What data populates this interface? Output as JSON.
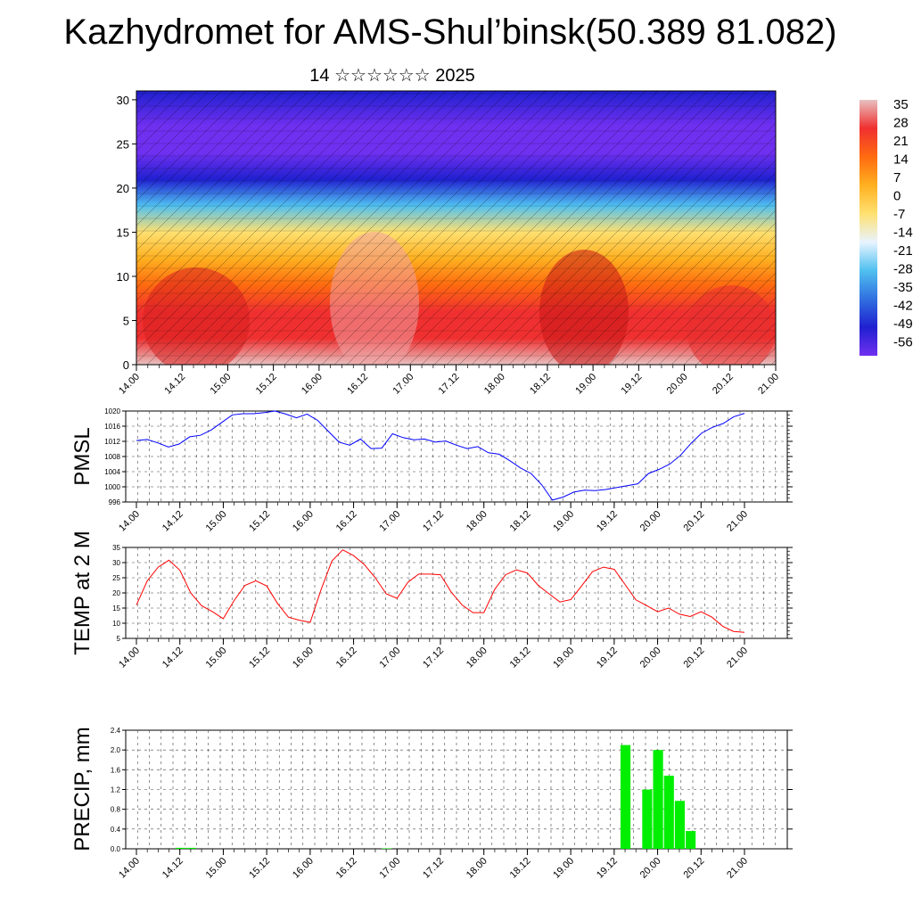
{
  "title": "Kazhydromet for AMS-Shul’binsk(50.389 81.082)",
  "date_label": "14 ☆☆☆☆☆☆ 2025",
  "x_ticks": [
    "14.00",
    "14.12",
    "15.00",
    "15.12",
    "16.00",
    "16.12",
    "17.00",
    "17.12",
    "18.00",
    "18.12",
    "19.00",
    "19.12",
    "20.00",
    "20.12",
    "21.00"
  ],
  "colorbar": {
    "labels": [
      "35",
      "28",
      "21",
      "14",
      "7",
      "0",
      "-7",
      "-14",
      "-21",
      "-28",
      "-35",
      "-42",
      "-49",
      "-56"
    ],
    "colors": [
      "#e8c0c0",
      "#f03030",
      "#ff6a10",
      "#ffb020",
      "#ffe070",
      "#e8f4ff",
      "#50c0f0",
      "#3070e0",
      "#2020d0",
      "#7030f0"
    ]
  },
  "chart_data": [
    {
      "type": "heatmap",
      "title": "",
      "xlabel": "",
      "ylabel": "",
      "x": [
        "14.00",
        "14.12",
        "15.00",
        "15.12",
        "16.00",
        "16.12",
        "17.00",
        "17.12",
        "18.00",
        "18.12",
        "19.00",
        "19.12",
        "20.00",
        "20.12",
        "21.00"
      ],
      "y_ticks": [
        0,
        5,
        10,
        15,
        20,
        25,
        30
      ],
      "ylim": [
        0,
        31
      ],
      "zlim": [
        -56,
        35
      ],
      "profile_levels": [
        0,
        3,
        6,
        9,
        12,
        15,
        18,
        21,
        24,
        27,
        31
      ],
      "profile_values": [
        30,
        27,
        24,
        18,
        8,
        -8,
        -25,
        -45,
        -56,
        -52,
        -48
      ]
    },
    {
      "type": "line",
      "ylabel": "PMSL",
      "y_ticks": [
        996,
        1000,
        1004,
        1008,
        1012,
        1016,
        1020
      ],
      "ylim": [
        996,
        1020
      ],
      "grid": true,
      "series": [
        {
          "color": "#0000ff",
          "values": [
            1012.2,
            1012.5,
            1011.6,
            1010.5,
            1011.3,
            1013.2,
            1013.6,
            1015.0,
            1017.0,
            1019.0,
            1019.3,
            1019.3,
            1019.6,
            1020.0,
            1019.2,
            1018.2,
            1019.2,
            1017.5,
            1014.6,
            1011.8,
            1011.0,
            1012.6,
            1010.1,
            1010.2,
            1014.0,
            1013.0,
            1012.4,
            1012.6,
            1011.8,
            1012.1,
            1011.0,
            1010.1,
            1010.6,
            1009.0,
            1008.6,
            1006.9,
            1005.0,
            1003.5,
            1000.5,
            996.5,
            997.3,
            998.6,
            999.1,
            999.0,
            999.3,
            999.8,
            1000.3,
            1000.8,
            1003.5,
            1004.6,
            1006.0,
            1008.3,
            1011.5,
            1014.2,
            1015.7,
            1016.7,
            1018.5,
            1019.4
          ]
        }
      ]
    },
    {
      "type": "line",
      "ylabel": "TEMP at 2 M",
      "y_ticks": [
        5,
        10,
        15,
        20,
        25,
        30,
        35
      ],
      "ylim": [
        5,
        35
      ],
      "grid": true,
      "series": [
        {
          "color": "#ff0000",
          "values": [
            16.0,
            24.0,
            28.5,
            30.8,
            27.5,
            20.0,
            15.8,
            13.8,
            11.5,
            17.5,
            22.5,
            24.0,
            22.3,
            16.5,
            12.0,
            11.0,
            10.3,
            21.0,
            30.5,
            34.2,
            32.3,
            29.3,
            25.0,
            19.7,
            18.2,
            23.5,
            26.2,
            26.2,
            26.0,
            20.2,
            16.0,
            13.5,
            13.5,
            21.2,
            26.0,
            27.6,
            26.6,
            22.5,
            19.7,
            17.0,
            17.8,
            22.3,
            27.0,
            28.5,
            27.8,
            22.8,
            17.7,
            15.8,
            13.8,
            15.0,
            13.0,
            12.2,
            13.8,
            12.0,
            9.0,
            7.3,
            7.0
          ]
        }
      ]
    },
    {
      "type": "bar",
      "ylabel": "PRECIP, mm",
      "y_ticks": [
        "0.0",
        "0.4",
        "0.8",
        "1.2",
        "1.6",
        "2.0",
        "2.4"
      ],
      "ylim": [
        0,
        2.4
      ],
      "grid": true,
      "color": "#00ee00",
      "bars": [
        {
          "x": "14.12",
          "value": 0.02
        },
        {
          "x": "14.12+3",
          "value": 0.02
        },
        {
          "x": "16.21",
          "value": 0.01
        },
        {
          "x": "19.15",
          "value": 2.1
        },
        {
          "x": "19.21",
          "value": 1.2
        },
        {
          "x": "20.00",
          "value": 2.0
        },
        {
          "x": "20.03",
          "value": 1.48
        },
        {
          "x": "20.06",
          "value": 0.97
        },
        {
          "x": "20.09",
          "value": 0.36
        }
      ]
    }
  ]
}
